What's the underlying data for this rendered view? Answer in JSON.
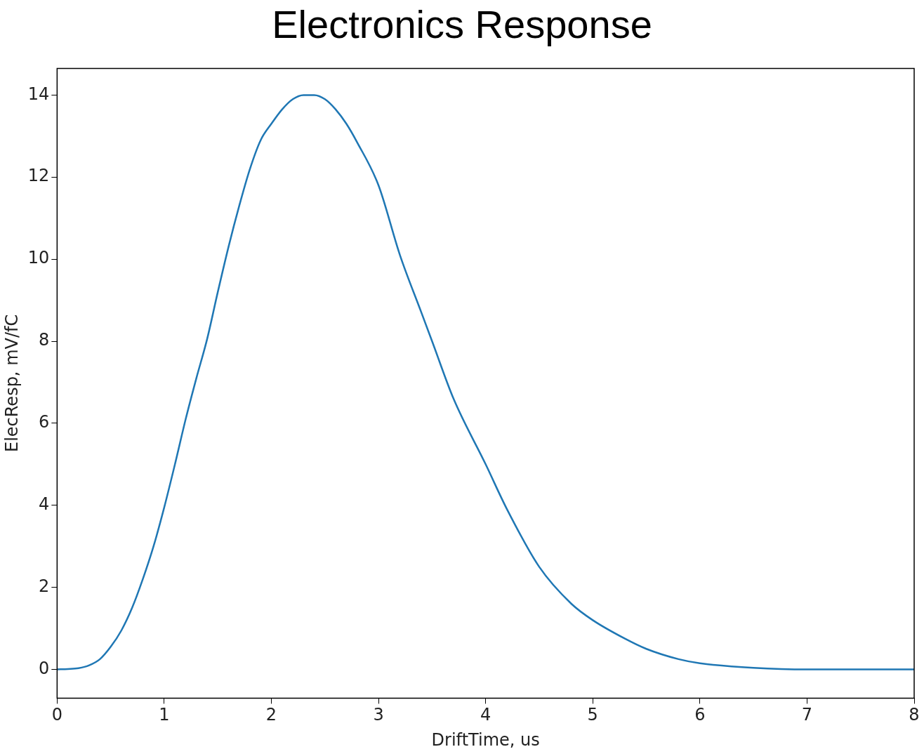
{
  "chart_data": {
    "type": "line",
    "title": "Electronics Response",
    "xlabel": "DriftTime, us",
    "ylabel": "ElecResp, mV/fC",
    "x": [
      0,
      0.1,
      0.2,
      0.3,
      0.4,
      0.5,
      0.6,
      0.7,
      0.8,
      0.9,
      1.0,
      1.1,
      1.2,
      1.3,
      1.4,
      1.5,
      1.6,
      1.7,
      1.8,
      1.9,
      2.0,
      2.1,
      2.2,
      2.3,
      2.4,
      2.5,
      2.6,
      2.7,
      2.8,
      3.0,
      3.2,
      3.4,
      3.5,
      3.7,
      4.0,
      4.2,
      4.5,
      4.8,
      5.0,
      5.3,
      5.5,
      5.8,
      6.0,
      6.5,
      7.0,
      7.5,
      8.0
    ],
    "series": [
      {
        "color": "#1f77b4",
        "values": [
          0,
          0.01,
          0.03,
          0.1,
          0.25,
          0.55,
          0.95,
          1.5,
          2.2,
          3.0,
          3.95,
          5.0,
          6.1,
          7.1,
          8.05,
          9.2,
          10.3,
          11.3,
          12.2,
          12.9,
          13.3,
          13.65,
          13.9,
          14.0,
          14.0,
          13.9,
          13.65,
          13.3,
          12.85,
          11.8,
          10.1,
          8.7,
          8.0,
          6.6,
          5.0,
          3.9,
          2.5,
          1.6,
          1.2,
          0.75,
          0.5,
          0.25,
          0.15,
          0.04,
          0.0,
          0.0,
          0.0
        ]
      }
    ],
    "xlim": [
      0,
      8
    ],
    "xticks": [
      0,
      1,
      2,
      3,
      4,
      5,
      6,
      7,
      8
    ],
    "ylim": [
      -0.7,
      14.65
    ],
    "yticks": [
      0,
      2,
      4,
      6,
      8,
      10,
      12,
      14
    ],
    "grid": false,
    "legend": false,
    "marker": "none",
    "line_style": "solid"
  }
}
